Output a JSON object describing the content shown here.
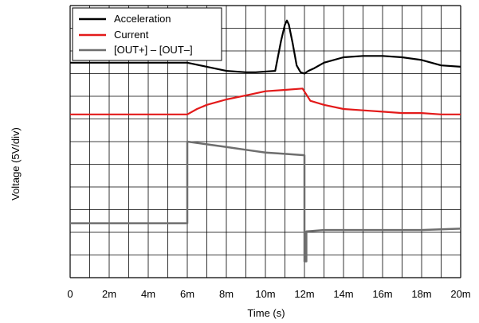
{
  "chart_data": {
    "type": "line",
    "xlabel": "Time (s)",
    "ylabel": "Voltage (5V/div)",
    "x_tick_labels": [
      "0",
      "2m",
      "4m",
      "6m",
      "8m",
      "10m",
      "12m",
      "14m",
      "16m",
      "18m",
      "20m"
    ],
    "xlim": [
      0,
      0.02
    ],
    "ylim_div": [
      0,
      10
    ],
    "grid": true,
    "legend_position": "top-left",
    "series": [
      {
        "name": "Acceleration",
        "color": "#000000",
        "x": [
          0,
          0.006,
          0.007,
          0.008,
          0.009,
          0.0095,
          0.0105,
          0.0108,
          0.011,
          0.0111,
          0.0112,
          0.0114,
          0.0116,
          0.0118,
          0.012,
          0.0122,
          0.0125,
          0.013,
          0.014,
          0.015,
          0.016,
          0.017,
          0.018,
          0.019,
          0.02
        ],
        "y": [
          7.9,
          7.9,
          7.75,
          7.6,
          7.55,
          7.55,
          7.6,
          8.7,
          9.3,
          9.45,
          9.3,
          8.6,
          7.8,
          7.55,
          7.5,
          7.6,
          7.7,
          7.9,
          8.1,
          8.15,
          8.15,
          8.1,
          8.0,
          7.8,
          7.75
        ]
      },
      {
        "name": "Current",
        "color": "#e31a1a",
        "x": [
          0,
          0.006,
          0.0065,
          0.007,
          0.008,
          0.009,
          0.01,
          0.011,
          0.0119,
          0.0123,
          0.013,
          0.014,
          0.015,
          0.016,
          0.017,
          0.018,
          0.019,
          0.02
        ],
        "y": [
          6.0,
          6.0,
          6.2,
          6.35,
          6.55,
          6.7,
          6.85,
          6.9,
          6.95,
          6.5,
          6.35,
          6.2,
          6.15,
          6.1,
          6.05,
          6.05,
          6.0,
          6.0
        ]
      },
      {
        "name": "[OUT+] – [OUT–]",
        "color": "#6e6e6e",
        "x": [
          0,
          0.006,
          0.006,
          0.007,
          0.008,
          0.009,
          0.01,
          0.011,
          0.012,
          0.012,
          0.0121,
          0.0121,
          0.013,
          0.014,
          0.016,
          0.018,
          0.02
        ],
        "y": [
          2.0,
          2.0,
          5.0,
          4.9,
          4.8,
          4.7,
          4.6,
          4.55,
          4.5,
          0.6,
          0.6,
          1.7,
          1.75,
          1.75,
          1.75,
          1.75,
          1.8
        ]
      }
    ]
  }
}
